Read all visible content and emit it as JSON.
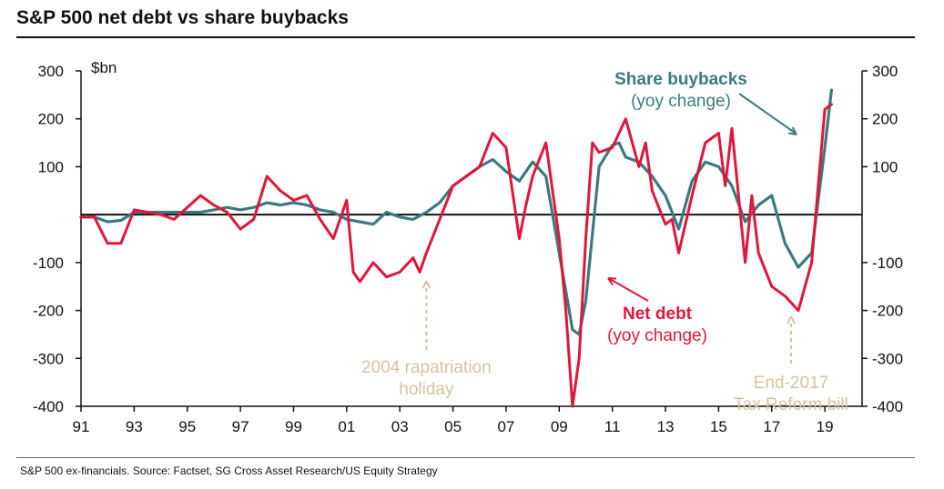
{
  "title": "S&P 500 net debt vs share buybacks",
  "source": "S&P 500 ex-financials. Source: Factset, SG Cross Asset Research/US Equity Strategy",
  "colors": {
    "buybacks": "#3c7a7f",
    "net_debt": "#e0163b",
    "annotation": "#d4c3a0",
    "axis": "#111111"
  },
  "chart_data": {
    "type": "line",
    "unit_label": "$bn",
    "ylim": [
      -400,
      300
    ],
    "xlim": [
      1991,
      2020.4
    ],
    "yticks": [
      -400,
      -300,
      -200,
      -100,
      100,
      200,
      300
    ],
    "ytick_labels": [
      "-400",
      "-300",
      "-200",
      "-100",
      "100",
      "200",
      "300"
    ],
    "xticks": [
      1991,
      1993,
      1995,
      1997,
      1999,
      2001,
      2003,
      2005,
      2007,
      2009,
      2011,
      2013,
      2015,
      2017,
      2019
    ],
    "xtick_labels": [
      "91",
      "93",
      "95",
      "97",
      "99",
      "01",
      "03",
      "05",
      "07",
      "09",
      "11",
      "13",
      "15",
      "17",
      "19"
    ],
    "grid": false,
    "series": [
      {
        "name": "Share buybacks",
        "subtitle": "(yoy change)",
        "x": [
          1991.0,
          1991.5,
          1992.0,
          1992.5,
          1993.0,
          1993.5,
          1994.0,
          1994.5,
          1995.0,
          1995.5,
          1996.0,
          1996.5,
          1997.0,
          1997.5,
          1998.0,
          1998.5,
          1999.0,
          1999.5,
          2000.0,
          2000.5,
          2001.0,
          2001.5,
          2002.0,
          2002.5,
          2003.0,
          2003.5,
          2004.0,
          2004.5,
          2005.0,
          2005.5,
          2006.0,
          2006.5,
          2007.0,
          2007.5,
          2008.0,
          2008.5,
          2009.0,
          2009.5,
          2009.75,
          2010.0,
          2010.5,
          2011.0,
          2011.25,
          2011.5,
          2012.0,
          2012.5,
          2013.0,
          2013.5,
          2014.0,
          2014.5,
          2015.0,
          2015.5,
          2016.0,
          2016.5,
          2017.0,
          2017.5,
          2018.0,
          2018.5,
          2019.0,
          2019.25
        ],
        "values": [
          -5,
          -5,
          -15,
          -12,
          5,
          5,
          5,
          5,
          5,
          5,
          10,
          15,
          10,
          15,
          25,
          20,
          25,
          20,
          10,
          5,
          -10,
          -15,
          -20,
          5,
          -5,
          -10,
          5,
          25,
          60,
          80,
          100,
          115,
          90,
          70,
          110,
          80,
          -80,
          -240,
          -250,
          -180,
          100,
          145,
          150,
          120,
          110,
          80,
          40,
          -30,
          70,
          110,
          100,
          60,
          -15,
          20,
          40,
          -60,
          -110,
          -80,
          140,
          260
        ]
      },
      {
        "name": "Net debt",
        "subtitle": "(yoy change)",
        "x": [
          1991.0,
          1991.5,
          1992.0,
          1992.5,
          1993.0,
          1993.5,
          1994.0,
          1994.5,
          1995.0,
          1995.5,
          1996.0,
          1996.5,
          1997.0,
          1997.5,
          1998.0,
          1998.5,
          1999.0,
          1999.5,
          2000.0,
          2000.5,
          2001.0,
          2001.25,
          2001.5,
          2002.0,
          2002.5,
          2003.0,
          2003.5,
          2003.75,
          2004.0,
          2004.5,
          2005.0,
          2005.5,
          2006.0,
          2006.5,
          2007.0,
          2007.5,
          2007.75,
          2008.0,
          2008.5,
          2009.0,
          2009.25,
          2009.5,
          2009.75,
          2010.0,
          2010.25,
          2010.5,
          2011.0,
          2011.5,
          2012.0,
          2012.25,
          2012.5,
          2013.0,
          2013.25,
          2013.5,
          2014.0,
          2014.5,
          2015.0,
          2015.25,
          2015.5,
          2016.0,
          2016.25,
          2016.5,
          2017.0,
          2017.5,
          2018.0,
          2018.5,
          2019.0,
          2019.25
        ],
        "values": [
          -5,
          -5,
          -60,
          -60,
          10,
          5,
          0,
          -10,
          15,
          40,
          20,
          5,
          -30,
          -10,
          80,
          50,
          30,
          40,
          -10,
          -50,
          30,
          -120,
          -140,
          -100,
          -130,
          -120,
          -90,
          -120,
          -80,
          -10,
          60,
          80,
          100,
          170,
          140,
          -50,
          20,
          80,
          150,
          -50,
          -200,
          -400,
          -300,
          -50,
          150,
          130,
          140,
          200,
          100,
          150,
          50,
          -20,
          -10,
          -80,
          40,
          150,
          170,
          60,
          180,
          -100,
          40,
          -80,
          -150,
          -170,
          -200,
          -100,
          220,
          230
        ]
      }
    ],
    "annotations": [
      {
        "text_lines": [
          "Share buybacks"
        ],
        "subtitle": "(yoy change)",
        "color_key": "buybacks"
      },
      {
        "text_lines": [
          "Net debt"
        ],
        "subtitle": "(yoy change)",
        "color_key": "net_debt"
      },
      {
        "text_lines": [
          "2004 rapatriation",
          "holiday"
        ],
        "points_to": [
          2004.0,
          -130
        ]
      },
      {
        "text_lines": [
          "End-2017",
          "Tax Reform bill"
        ],
        "points_to": [
          2018.0,
          -210
        ]
      }
    ]
  }
}
